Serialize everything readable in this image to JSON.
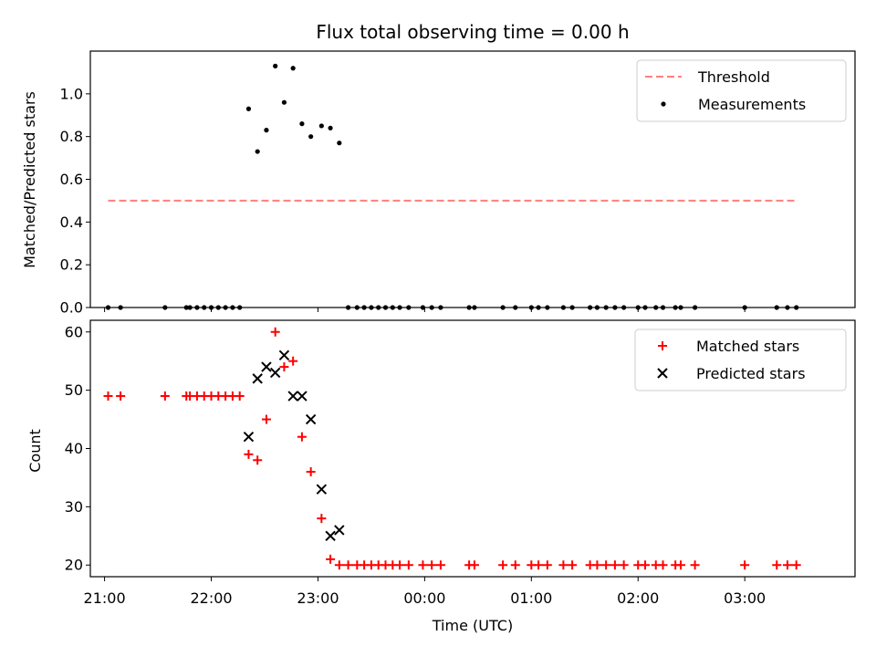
{
  "chart_data": [
    {
      "type": "scatter",
      "title": "Flux total observing time = 0.00 h",
      "xlabel": "",
      "ylabel": "Matched/Predicted stars",
      "ylim": [
        0.0,
        1.2
      ],
      "xlim": [
        "20:52",
        "04:02"
      ],
      "yticks": [
        "0.0",
        "0.2",
        "0.4",
        "0.6",
        "0.8",
        "1.0"
      ],
      "grid": false,
      "legend": {
        "placement": "top-right",
        "entries": [
          "Threshold",
          "Measurements"
        ]
      },
      "threshold": {
        "name": "Threshold",
        "y": 0.5,
        "x": [
          "21:02",
          "03:30"
        ],
        "color": "#ff7f7f",
        "style": "dashed"
      },
      "series": [
        {
          "name": "Measurements",
          "marker": "dot",
          "color": "#000000",
          "x": [
            "21:02",
            "21:09",
            "21:34",
            "21:46",
            "21:48",
            "21:52",
            "21:56",
            "22:00",
            "22:04",
            "22:08",
            "22:12",
            "22:16",
            "22:21",
            "22:26",
            "22:31",
            "22:36",
            "22:41",
            "22:46",
            "22:51",
            "22:56",
            "23:02",
            "23:07",
            "23:12",
            "23:17",
            "23:22",
            "23:26",
            "23:30",
            "23:34",
            "23:38",
            "23:42",
            "23:46",
            "23:51",
            "23:59",
            "00:04",
            "00:09",
            "00:25",
            "00:28",
            "00:44",
            "00:51",
            "01:00",
            "01:04",
            "01:09",
            "01:18",
            "01:23",
            "01:33",
            "01:37",
            "01:42",
            "01:47",
            "01:52",
            "02:00",
            "02:04",
            "02:10",
            "02:14",
            "02:21",
            "02:24",
            "02:32",
            "03:00",
            "03:18",
            "03:24",
            "03:29"
          ],
          "y": [
            0,
            0,
            0,
            0,
            0,
            0,
            0,
            0,
            0,
            0,
            0,
            0,
            0.93,
            0.73,
            0.83,
            1.13,
            0.96,
            1.12,
            0.86,
            0.8,
            0.85,
            0.84,
            0.77,
            0,
            0,
            0,
            0,
            0,
            0,
            0,
            0,
            0,
            0,
            0,
            0,
            0,
            0,
            0,
            0,
            0,
            0,
            0,
            0,
            0,
            0,
            0,
            0,
            0,
            0,
            0,
            0,
            0,
            0,
            0,
            0,
            0,
            0,
            0,
            0,
            0
          ]
        }
      ]
    },
    {
      "type": "scatter",
      "title": "",
      "xlabel": "Time (UTC)",
      "ylabel": "Count",
      "ylim": [
        18,
        62
      ],
      "xlim": [
        "20:52",
        "04:02"
      ],
      "xticks": [
        "21:00",
        "22:00",
        "23:00",
        "00:00",
        "01:00",
        "02:00",
        "03:00"
      ],
      "yticks": [
        "20",
        "30",
        "40",
        "50",
        "60"
      ],
      "grid": false,
      "legend": {
        "placement": "top-right",
        "entries": [
          "Matched stars",
          "Predicted stars"
        ]
      },
      "series": [
        {
          "name": "Matched stars",
          "marker": "plus",
          "color": "#ff0000",
          "x": [
            "21:02",
            "21:09",
            "21:34",
            "21:46",
            "21:48",
            "21:52",
            "21:56",
            "22:00",
            "22:04",
            "22:08",
            "22:12",
            "22:16",
            "22:21",
            "22:26",
            "22:31",
            "22:36",
            "22:41",
            "22:46",
            "22:51",
            "22:56",
            "23:02",
            "23:07",
            "23:12",
            "23:17",
            "23:22",
            "23:26",
            "23:30",
            "23:34",
            "23:38",
            "23:42",
            "23:46",
            "23:51",
            "23:59",
            "00:04",
            "00:09",
            "00:25",
            "00:28",
            "00:44",
            "00:51",
            "01:00",
            "01:04",
            "01:09",
            "01:18",
            "01:23",
            "01:33",
            "01:37",
            "01:42",
            "01:47",
            "01:52",
            "02:00",
            "02:04",
            "02:10",
            "02:14",
            "02:21",
            "02:24",
            "02:32",
            "03:00",
            "03:18",
            "03:24",
            "03:29"
          ],
          "y": [
            49,
            49,
            49,
            49,
            49,
            49,
            49,
            49,
            49,
            49,
            49,
            49,
            39,
            38,
            45,
            60,
            54,
            55,
            42,
            36,
            28,
            21,
            20,
            20,
            20,
            20,
            20,
            20,
            20,
            20,
            20,
            20,
            20,
            20,
            20,
            20,
            20,
            20,
            20,
            20,
            20,
            20,
            20,
            20,
            20,
            20,
            20,
            20,
            20,
            20,
            20,
            20,
            20,
            20,
            20,
            20,
            20,
            20,
            20,
            20
          ]
        },
        {
          "name": "Predicted stars",
          "marker": "x",
          "color": "#000000",
          "x": [
            "22:21",
            "22:26",
            "22:31",
            "22:36",
            "22:41",
            "22:46",
            "22:51",
            "22:56",
            "23:02",
            "23:07",
            "23:12"
          ],
          "y": [
            42,
            52,
            54,
            53,
            56,
            49,
            49,
            45,
            33,
            25,
            26
          ]
        }
      ]
    }
  ]
}
